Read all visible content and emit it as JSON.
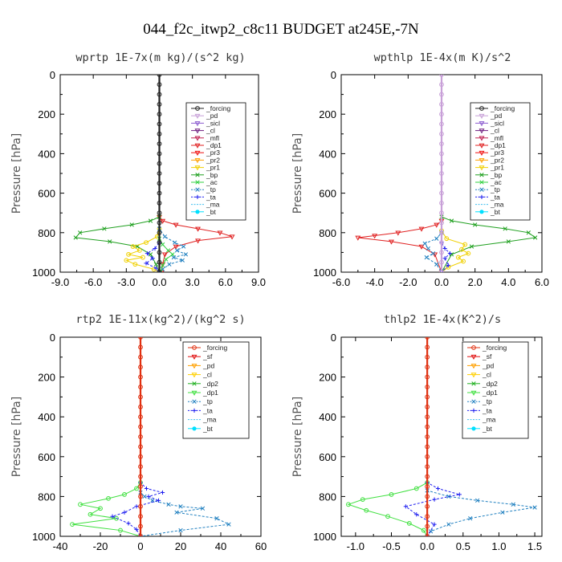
{
  "figure_title": "044_f2c_itwp2_c8c11  BUDGET at245E,-7N",
  "colors": {
    "forcing": "#202020",
    "pd": "#c8a0d8",
    "sicl": "#8a5ad0",
    "cl": "#702080",
    "mfl": "#c02050",
    "dp1": "#e02020",
    "pr3": "#f01010",
    "pr2": "#ffa000",
    "pr1": "#f0d000",
    "bp": "#20a020",
    "ac": "#30d040",
    "tp": "#2080c0",
    "ta": "#2020f0",
    "ma": "#40c0f0",
    "bt": "#00e0ff",
    "sf": "#e01010",
    "cl2": "#ffd000",
    "dp2": "#20b020",
    "dp1b": "#40e040",
    "forcing_red": "#e03010"
  },
  "chart_data": [
    {
      "type": "line",
      "title": "wprtp  1E-7x(m kg)/(s^2 kg)",
      "ylabel": "Pressure [hPa]",
      "xlim": [
        -9,
        9
      ],
      "ylim": [
        1000,
        0
      ],
      "xticks": [
        -9,
        -6,
        -3,
        0,
        3,
        6,
        9
      ],
      "xtick_labels": [
        "-9.0",
        "-6.0",
        "-3.0",
        "0.0",
        "3.0",
        "6.0",
        "9.0"
      ],
      "yticks": [
        0,
        200,
        400,
        600,
        800,
        1000
      ],
      "ytick_labels": [
        "0",
        "200",
        "400",
        "600",
        "800",
        "1000"
      ],
      "legend": [
        "_forcing",
        "_pd",
        "_sicl",
        "_cl",
        "_mfl",
        "_dp1",
        "_pr3",
        "_pr2",
        "_pr1",
        "_bp",
        "_ac",
        "_tp",
        "_ta",
        "_ma",
        "_bt"
      ],
      "series": [
        {
          "name": "_dp1",
          "color": "dp1",
          "marker": "tri",
          "dashed": false,
          "x": [
            0,
            0,
            0.3,
            1.5,
            3.5,
            5.5,
            6.6,
            3.5,
            1.5,
            0.5,
            0.3,
            0.2
          ],
          "y": [
            0,
            720,
            740,
            760,
            780,
            800,
            820,
            840,
            870,
            910,
            960,
            1000
          ]
        },
        {
          "name": "_bp",
          "color": "bp",
          "marker": "x",
          "dashed": false,
          "x": [
            0,
            0,
            -0.8,
            -2.5,
            -5,
            -7.2,
            -7.6,
            -4.5,
            -2,
            -0.8,
            -0.3,
            0
          ],
          "y": [
            0,
            720,
            740,
            760,
            780,
            800,
            825,
            845,
            870,
            910,
            960,
            1000
          ]
        },
        {
          "name": "_pr1",
          "color": "pr1",
          "marker": "circ",
          "dashed": false,
          "x": [
            0,
            0,
            -0.2,
            -1.2,
            -2.4,
            -1.8,
            -2.8,
            -1.5,
            -3,
            -2.2,
            -0.5,
            0
          ],
          "y": [
            0,
            780,
            820,
            850,
            870,
            890,
            910,
            925,
            940,
            960,
            985,
            1000
          ]
        },
        {
          "name": "_tp",
          "color": "tp",
          "marker": "x",
          "dashed": true,
          "x": [
            0,
            0,
            0.5,
            1.4,
            2.2,
            1.6,
            2.4,
            1.3,
            2.1,
            0.9,
            0.3,
            0
          ],
          "y": [
            0,
            780,
            820,
            850,
            870,
            890,
            910,
            925,
            940,
            960,
            985,
            1000
          ]
        },
        {
          "name": "_ac",
          "color": "ac",
          "marker": "x",
          "dashed": false,
          "x": [
            0,
            0,
            0.3,
            0.8,
            1.2,
            0.6,
            0.3,
            0.1
          ],
          "y": [
            0,
            830,
            860,
            890,
            910,
            935,
            965,
            1000
          ]
        },
        {
          "name": "_ta",
          "color": "ta",
          "marker": "plus",
          "dashed": true,
          "x": [
            0,
            0,
            -0.4,
            -1.1,
            -0.6,
            -1.2,
            -0.3,
            0
          ],
          "y": [
            0,
            850,
            880,
            905,
            930,
            955,
            980,
            1000
          ]
        },
        {
          "name": "_forcing",
          "color": "forcing",
          "marker": "circ",
          "dashed": false,
          "x": [
            0,
            0,
            0,
            0,
            0,
            0,
            0,
            0,
            0,
            0,
            0,
            0,
            0,
            0,
            0,
            0,
            0,
            0,
            0,
            0,
            0
          ],
          "y": [
            0,
            50,
            100,
            150,
            200,
            250,
            300,
            350,
            400,
            450,
            500,
            550,
            600,
            650,
            700,
            750,
            800,
            850,
            900,
            950,
            1000
          ]
        }
      ]
    },
    {
      "type": "line",
      "title": "wpthlp  1E-4x(m K)/s^2",
      "ylabel": "Pressure [hPa]",
      "xlim": [
        -6,
        6
      ],
      "ylim": [
        1000,
        0
      ],
      "xticks": [
        -6,
        -4,
        -2,
        0,
        2,
        4,
        6
      ],
      "xtick_labels": [
        "-6.0",
        "-4.0",
        "-2.0",
        "0.0",
        "2.0",
        "4.0",
        "6.0"
      ],
      "yticks": [
        0,
        200,
        400,
        600,
        800,
        1000
      ],
      "ytick_labels": [
        "0",
        "200",
        "400",
        "600",
        "800",
        "1000"
      ],
      "legend": [
        "_forcing",
        "_pd",
        "_sicl",
        "_cl",
        "_mfl",
        "_dp1",
        "_pr3",
        "_pr2",
        "_pr1",
        "_bp",
        "_ac",
        "_tp",
        "_ta",
        "_ma",
        "_bt"
      ],
      "series": [
        {
          "name": "_dp1",
          "color": "dp1",
          "marker": "tri",
          "dashed": false,
          "x": [
            0,
            0,
            -0.3,
            -1.2,
            -2.6,
            -4,
            -5,
            -3,
            -1.2,
            -0.4,
            0
          ],
          "y": [
            0,
            740,
            760,
            780,
            800,
            815,
            825,
            845,
            870,
            910,
            1000
          ]
        },
        {
          "name": "_bp",
          "color": "bp",
          "marker": "x",
          "dashed": false,
          "x": [
            0,
            0,
            0.6,
            2,
            3.8,
            5.2,
            5.6,
            4,
            1.8,
            0.6,
            0
          ],
          "y": [
            0,
            720,
            740,
            760,
            780,
            800,
            825,
            845,
            870,
            910,
            1000
          ]
        },
        {
          "name": "_pr1",
          "color": "pr1",
          "marker": "circ",
          "dashed": false,
          "x": [
            0,
            0,
            0.3,
            1.4,
            1.2,
            1.6,
            1.0,
            1.3,
            0.4,
            0
          ],
          "y": [
            0,
            790,
            830,
            860,
            885,
            905,
            925,
            945,
            975,
            1000
          ]
        },
        {
          "name": "_tp",
          "color": "tp",
          "marker": "x",
          "dashed": true,
          "x": [
            0,
            0,
            -0.3,
            -1.0,
            -0.8,
            -0.5,
            -0.9,
            -0.3,
            0
          ],
          "y": [
            0,
            800,
            830,
            855,
            880,
            905,
            925,
            960,
            1000
          ]
        },
        {
          "name": "_ta",
          "color": "ta",
          "marker": "plus",
          "dashed": true,
          "x": [
            0,
            0,
            0.2,
            0.5,
            0.2,
            0.4,
            0
          ],
          "y": [
            0,
            850,
            880,
            905,
            930,
            965,
            1000
          ]
        },
        {
          "name": "_forcing",
          "color": "pd",
          "marker": "circ",
          "dashed": false,
          "x": [
            0,
            0,
            0,
            0,
            0,
            0,
            0,
            0,
            0,
            0,
            0,
            0,
            0,
            0,
            0,
            0,
            0,
            0,
            0,
            0,
            0
          ],
          "y": [
            0,
            50,
            100,
            150,
            200,
            250,
            300,
            350,
            400,
            450,
            500,
            550,
            600,
            650,
            700,
            750,
            800,
            850,
            900,
            950,
            1000
          ]
        }
      ]
    },
    {
      "type": "line",
      "title": "rtp2  1E-11x(kg^2)/(kg^2 s)",
      "ylabel": "Pressure [hPa]",
      "xlim": [
        -40,
        60
      ],
      "ylim": [
        1000,
        0
      ],
      "xticks": [
        -40,
        -20,
        0,
        20,
        40,
        60
      ],
      "xtick_labels": [
        "-40",
        "-20",
        "0",
        "20",
        "40",
        "60"
      ],
      "yticks": [
        0,
        200,
        400,
        600,
        800,
        1000
      ],
      "ytick_labels": [
        "0",
        "200",
        "400",
        "600",
        "800",
        "1000"
      ],
      "legend": [
        "_forcing",
        "_sf",
        "_pd",
        "_cl",
        "_dp2",
        "_dp1",
        "_tp",
        "_ta",
        "_ma",
        "_bt"
      ],
      "series": [
        {
          "name": "_dp1",
          "color": "dp1b",
          "marker": "circ",
          "dashed": false,
          "x": [
            0,
            0,
            -2,
            -8,
            -16,
            -30,
            -20,
            -25,
            -12,
            -34,
            -10,
            0
          ],
          "y": [
            0,
            730,
            760,
            790,
            810,
            840,
            860,
            890,
            910,
            940,
            970,
            1000
          ]
        },
        {
          "name": "_tp",
          "color": "tp",
          "marker": "x",
          "dashed": true,
          "x": [
            0,
            0,
            2,
            6,
            14,
            20,
            31,
            18,
            38,
            44,
            20,
            0
          ],
          "y": [
            0,
            780,
            800,
            820,
            840,
            850,
            860,
            880,
            910,
            940,
            970,
            1000
          ]
        },
        {
          "name": "_ta",
          "color": "ta",
          "marker": "plus",
          "dashed": true,
          "x": [
            0,
            0,
            3,
            11,
            4,
            9,
            -2,
            -8,
            -14,
            -6,
            -2,
            0
          ],
          "y": [
            0,
            730,
            760,
            780,
            800,
            820,
            850,
            880,
            900,
            935,
            965,
            1000
          ]
        },
        {
          "name": "_forcing",
          "color": "forcing_red",
          "marker": "circ",
          "dashed": false,
          "x": [
            0,
            0,
            0,
            0,
            0,
            0,
            0,
            0,
            0,
            0,
            0,
            0,
            0,
            0,
            0,
            0,
            0,
            0,
            0,
            0,
            0
          ],
          "y": [
            0,
            50,
            100,
            150,
            200,
            250,
            300,
            350,
            400,
            450,
            500,
            550,
            600,
            650,
            700,
            750,
            800,
            850,
            900,
            950,
            1000
          ]
        }
      ]
    },
    {
      "type": "line",
      "title": "thlp2  1E-4x(K^2)/s",
      "ylabel": "Pressure [hPa]",
      "xlim": [
        -1.2,
        1.6
      ],
      "ylim": [
        1000,
        0
      ],
      "xticks": [
        -1.0,
        -0.5,
        0.0,
        0.5,
        1.0,
        1.5
      ],
      "xtick_labels": [
        "-1.0",
        "-0.5",
        "0.0",
        "0.5",
        "1.0",
        "1.5"
      ],
      "yticks": [
        0,
        200,
        400,
        600,
        800,
        1000
      ],
      "ytick_labels": [
        "0",
        "200",
        "400",
        "600",
        "800",
        "1000"
      ],
      "legend": [
        "_forcing",
        "_sf",
        "_pd",
        "_cl",
        "_dp2",
        "_dp1",
        "_tp",
        "_ta",
        "_ma",
        "_bt"
      ],
      "series": [
        {
          "name": "_dp1",
          "color": "dp1b",
          "marker": "circ",
          "dashed": false,
          "x": [
            0,
            0,
            -0.15,
            -0.5,
            -0.9,
            -1.1,
            -0.85,
            -0.55,
            -0.25,
            -0.05,
            0
          ],
          "y": [
            0,
            730,
            760,
            790,
            815,
            840,
            870,
            900,
            935,
            970,
            1000
          ]
        },
        {
          "name": "_tp",
          "color": "tp",
          "marker": "x",
          "dashed": true,
          "x": [
            0,
            0,
            0.3,
            0.7,
            1.2,
            1.5,
            1.05,
            0.6,
            0.3,
            0.05,
            0
          ],
          "y": [
            0,
            770,
            800,
            820,
            840,
            855,
            880,
            910,
            940,
            975,
            1000
          ]
        },
        {
          "name": "_ta",
          "color": "ta",
          "marker": "plus",
          "dashed": true,
          "x": [
            0,
            0,
            0.15,
            0.45,
            0.1,
            -0.3,
            -0.15,
            0.1,
            0
          ],
          "y": [
            0,
            730,
            760,
            790,
            815,
            850,
            890,
            940,
            1000
          ]
        },
        {
          "name": "_forcing",
          "color": "forcing_red",
          "marker": "circ",
          "dashed": false,
          "x": [
            0,
            0,
            0,
            0,
            0,
            0,
            0,
            0,
            0,
            0,
            0,
            0,
            0,
            0,
            0,
            0,
            0,
            0,
            0,
            0,
            0
          ],
          "y": [
            0,
            50,
            100,
            150,
            200,
            250,
            300,
            350,
            400,
            450,
            500,
            550,
            600,
            650,
            700,
            750,
            800,
            850,
            900,
            950,
            1000
          ]
        }
      ]
    }
  ]
}
